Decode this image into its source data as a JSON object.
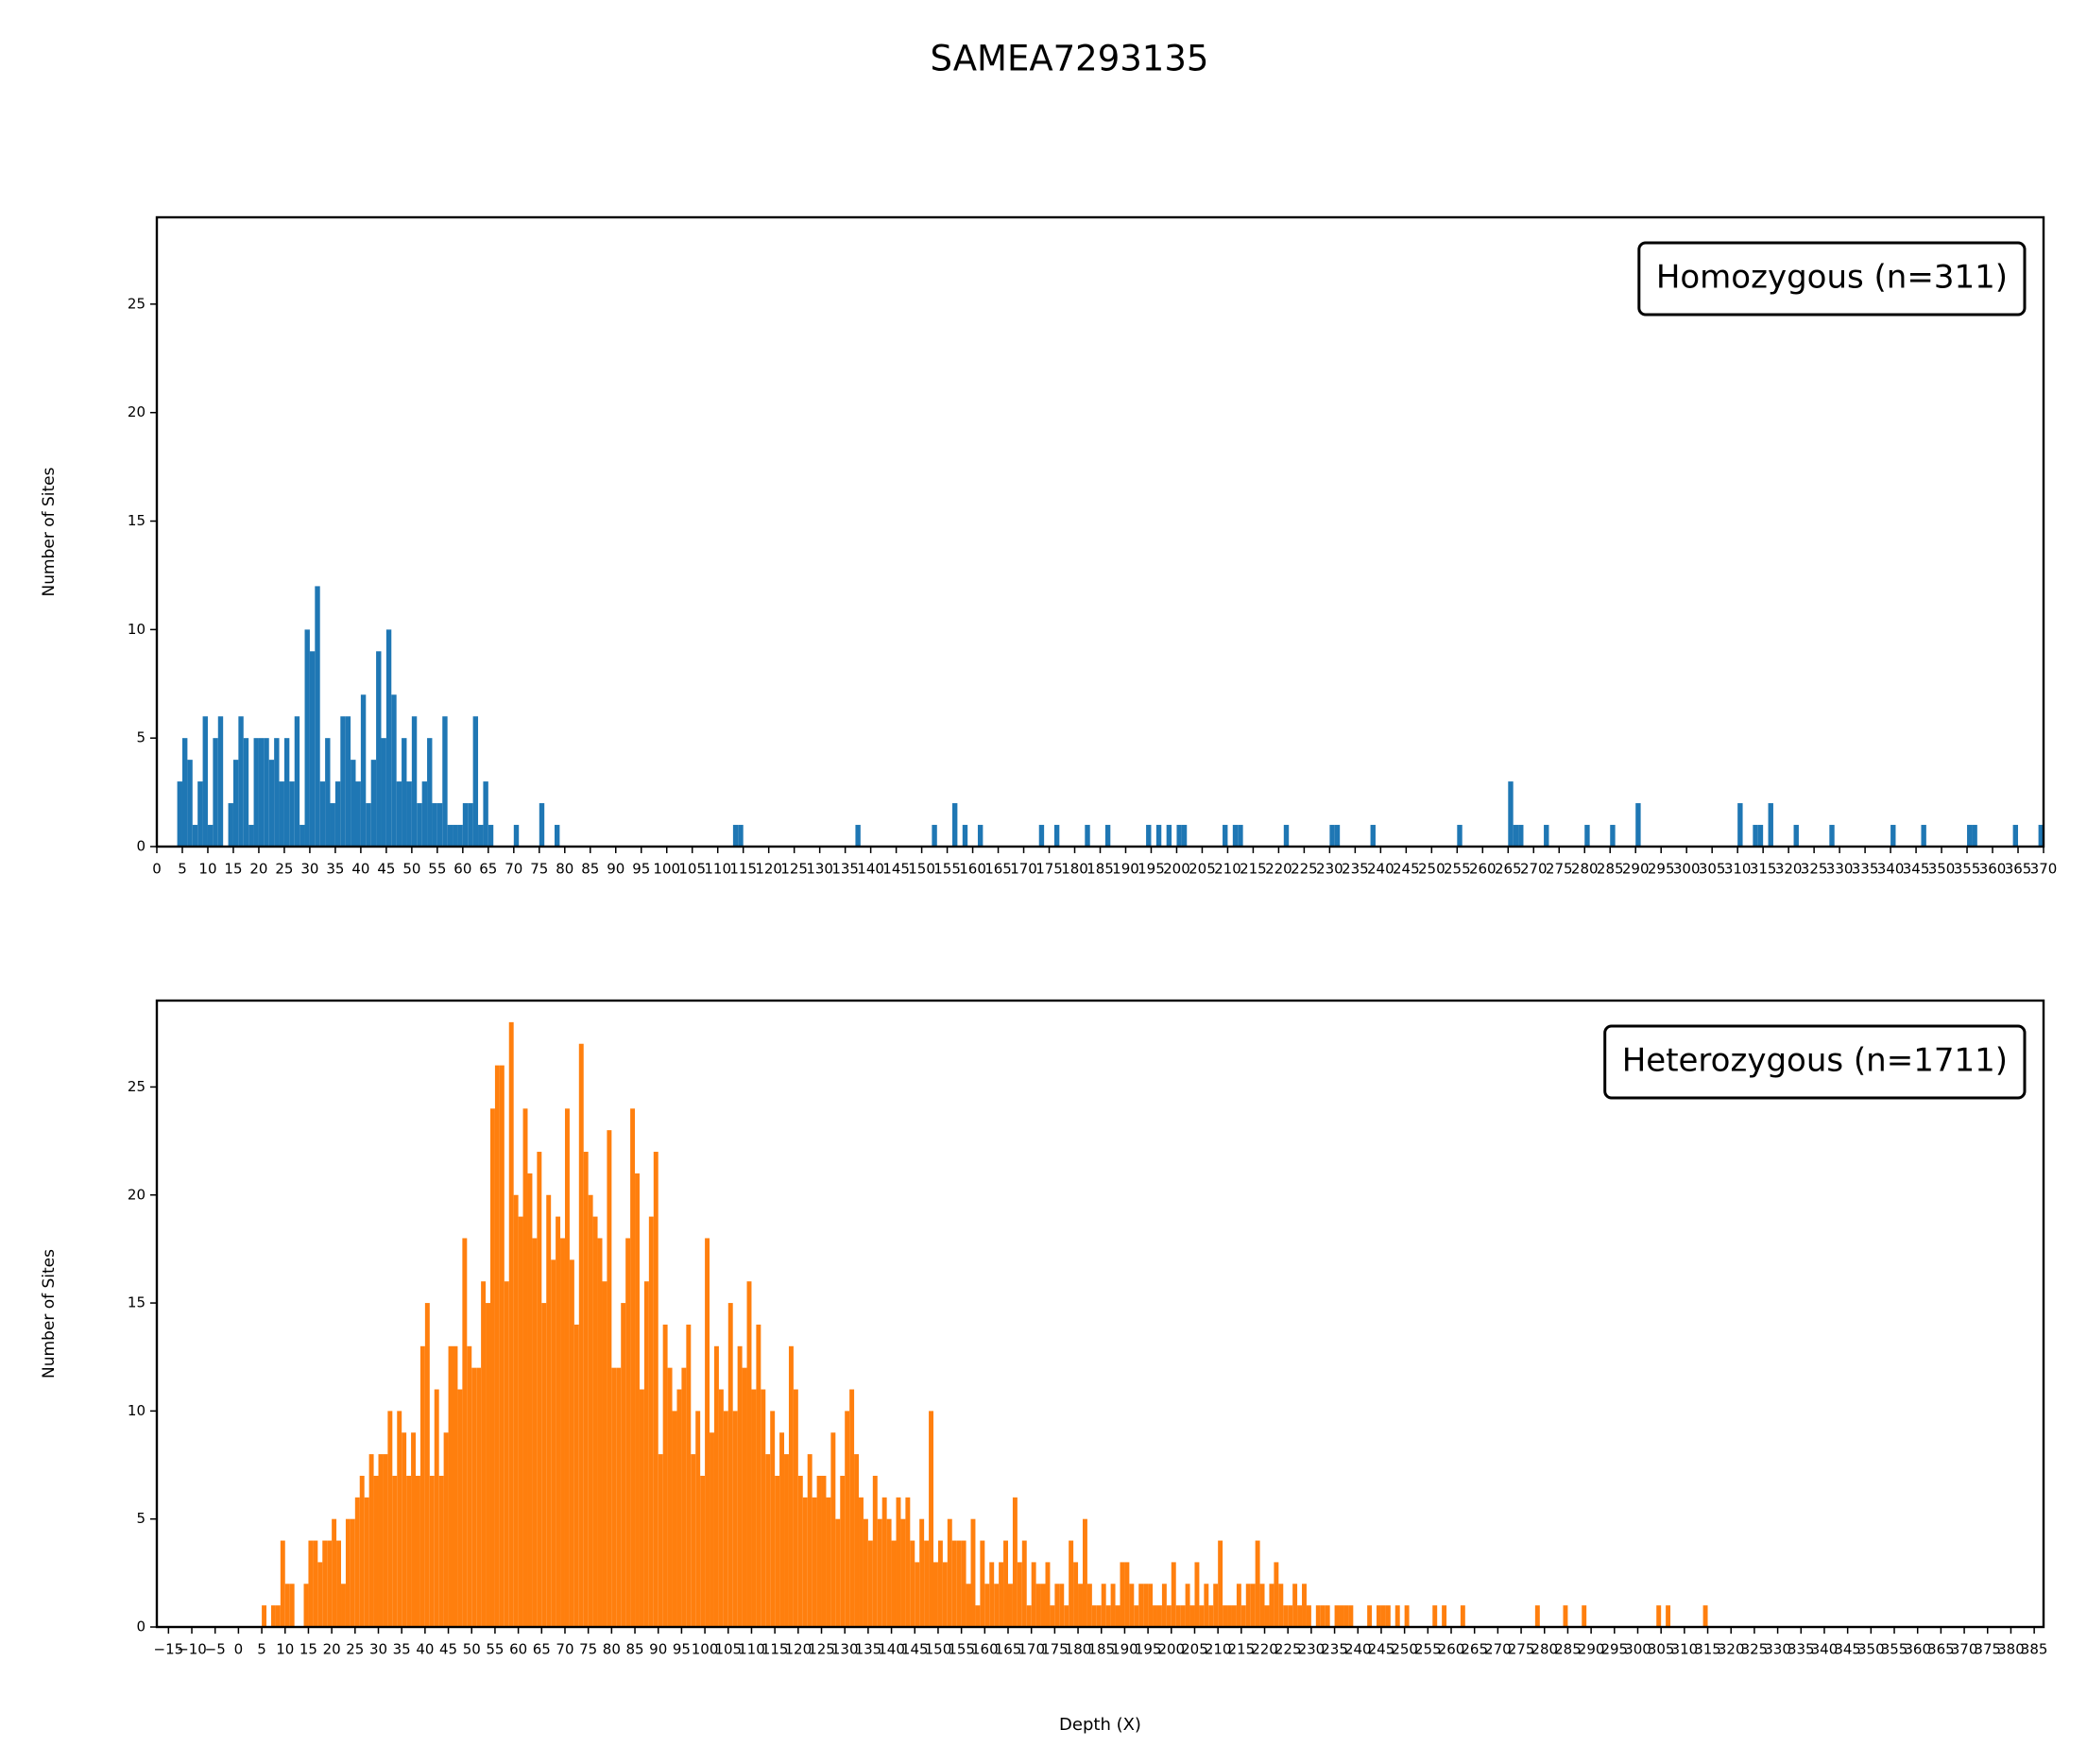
{
  "title": "SAMEA7293135",
  "chart_data": [
    {
      "type": "bar",
      "label": "Homozygous (n=311)",
      "color": "#1f77b4",
      "ylabel": "Number of Sites",
      "x": [
        4,
        5,
        6,
        7,
        8,
        9,
        10,
        11,
        12,
        14,
        15,
        16,
        17,
        18,
        19,
        20,
        21,
        22,
        23,
        24,
        25,
        26,
        27,
        28,
        29,
        30,
        31,
        32,
        33,
        34,
        35,
        36,
        37,
        38,
        39,
        40,
        41,
        42,
        43,
        44,
        45,
        46,
        47,
        48,
        49,
        50,
        51,
        52,
        53,
        54,
        55,
        56,
        57,
        58,
        59,
        60,
        61,
        62,
        63,
        64,
        65,
        70,
        75,
        78,
        113,
        114,
        137,
        152,
        156,
        158,
        161,
        173,
        176,
        182,
        186,
        194,
        196,
        198,
        200,
        201,
        209,
        211,
        212,
        221,
        230,
        231,
        238,
        255,
        265,
        266,
        267,
        272,
        280,
        285,
        290,
        310,
        313,
        314,
        316,
        321,
        328,
        340,
        346,
        355,
        356,
        364,
        369
      ],
      "values": [
        3,
        5,
        4,
        1,
        3,
        6,
        1,
        5,
        6,
        2,
        4,
        6,
        5,
        1,
        5,
        5,
        5,
        4,
        5,
        3,
        5,
        3,
        6,
        1,
        10,
        9,
        12,
        3,
        5,
        2,
        3,
        6,
        6,
        4,
        3,
        7,
        2,
        4,
        9,
        5,
        10,
        7,
        3,
        5,
        3,
        6,
        2,
        3,
        5,
        2,
        2,
        6,
        1,
        1,
        1,
        2,
        2,
        6,
        1,
        3,
        1,
        1,
        2,
        1,
        1,
        1,
        1,
        1,
        2,
        1,
        1,
        1,
        1,
        1,
        1,
        1,
        1,
        1,
        1,
        1,
        1,
        1,
        1,
        1,
        1,
        1,
        1,
        1,
        3,
        1,
        1,
        1,
        1,
        1,
        2,
        2,
        1,
        1,
        2,
        1,
        1,
        1,
        1,
        1,
        1,
        1,
        1
      ],
      "xlim": [
        0,
        370
      ],
      "xticks": [
        0,
        5,
        10,
        15,
        20,
        25,
        30,
        35,
        40,
        45,
        50,
        55,
        60,
        65,
        70,
        75,
        80,
        85,
        90,
        95,
        100,
        105,
        110,
        115,
        120,
        125,
        130,
        135,
        140,
        145,
        150,
        155,
        160,
        165,
        170,
        175,
        180,
        185,
        190,
        195,
        200,
        205,
        210,
        215,
        220,
        225,
        230,
        235,
        240,
        245,
        250,
        255,
        260,
        265,
        270,
        275,
        280,
        285,
        290,
        295,
        300,
        305,
        310,
        315,
        320,
        325,
        330,
        335,
        340,
        345,
        350,
        355,
        360,
        365,
        370
      ],
      "ylim": [
        0,
        29
      ],
      "yticks": [
        0,
        5,
        10,
        15,
        20,
        25
      ]
    },
    {
      "type": "bar",
      "label": "Heterozygous (n=1711)",
      "color": "#ff7f0e",
      "ylabel": "Number of Sites",
      "xlabel": "Depth (X)",
      "x": [
        5,
        6,
        7,
        8,
        9,
        10,
        11,
        12,
        13,
        14,
        15,
        16,
        17,
        18,
        19,
        20,
        21,
        22,
        23,
        24,
        25,
        26,
        27,
        28,
        29,
        30,
        31,
        32,
        33,
        34,
        35,
        36,
        37,
        38,
        39,
        40,
        41,
        42,
        43,
        44,
        45,
        46,
        47,
        48,
        49,
        50,
        51,
        52,
        53,
        54,
        55,
        56,
        57,
        58,
        59,
        60,
        61,
        62,
        63,
        64,
        65,
        66,
        67,
        68,
        69,
        70,
        71,
        72,
        73,
        74,
        75,
        76,
        77,
        78,
        79,
        80,
        81,
        82,
        83,
        84,
        85,
        86,
        87,
        88,
        89,
        90,
        91,
        92,
        93,
        94,
        95,
        96,
        97,
        98,
        99,
        100,
        101,
        102,
        103,
        104,
        105,
        106,
        107,
        108,
        109,
        110,
        111,
        112,
        113,
        114,
        115,
        116,
        117,
        118,
        119,
        120,
        121,
        122,
        123,
        124,
        125,
        126,
        127,
        128,
        129,
        130,
        131,
        132,
        133,
        134,
        135,
        136,
        137,
        138,
        139,
        140,
        141,
        142,
        143,
        144,
        145,
        146,
        147,
        148,
        149,
        150,
        151,
        152,
        153,
        154,
        155,
        156,
        157,
        158,
        159,
        160,
        161,
        162,
        163,
        164,
        165,
        166,
        167,
        168,
        169,
        170,
        171,
        172,
        173,
        174,
        175,
        176,
        177,
        178,
        179,
        180,
        181,
        182,
        183,
        184,
        185,
        186,
        187,
        188,
        189,
        190,
        191,
        192,
        193,
        194,
        195,
        196,
        197,
        198,
        199,
        200,
        201,
        202,
        203,
        204,
        205,
        206,
        207,
        208,
        209,
        210,
        211,
        212,
        213,
        214,
        215,
        216,
        217,
        218,
        219,
        220,
        221,
        222,
        223,
        224,
        225,
        226,
        227,
        228,
        229,
        231,
        232,
        233,
        235,
        236,
        237,
        238,
        242,
        244,
        245,
        246,
        248,
        250,
        256,
        258,
        262,
        278,
        284,
        288,
        304,
        306,
        314
      ],
      "values": [
        1,
        0,
        1,
        1,
        4,
        2,
        2,
        0,
        0,
        2,
        4,
        4,
        3,
        4,
        4,
        5,
        4,
        2,
        5,
        5,
        6,
        7,
        6,
        8,
        7,
        8,
        8,
        10,
        7,
        10,
        9,
        7,
        9,
        7,
        13,
        15,
        7,
        11,
        7,
        9,
        13,
        13,
        11,
        18,
        13,
        12,
        12,
        16,
        15,
        24,
        26,
        26,
        16,
        28,
        20,
        19,
        24,
        21,
        18,
        22,
        15,
        20,
        17,
        19,
        18,
        24,
        17,
        14,
        27,
        22,
        20,
        19,
        18,
        16,
        23,
        12,
        12,
        15,
        18,
        24,
        21,
        11,
        16,
        19,
        22,
        8,
        14,
        12,
        10,
        11,
        12,
        14,
        8,
        10,
        7,
        18,
        9,
        13,
        11,
        10,
        15,
        10,
        13,
        12,
        16,
        11,
        14,
        11,
        8,
        10,
        7,
        9,
        8,
        13,
        11,
        7,
        6,
        8,
        6,
        7,
        7,
        6,
        9,
        5,
        7,
        10,
        11,
        8,
        6,
        5,
        4,
        7,
        5,
        6,
        5,
        4,
        6,
        5,
        6,
        4,
        3,
        5,
        4,
        10,
        3,
        4,
        3,
        5,
        4,
        4,
        4,
        2,
        5,
        1,
        4,
        2,
        3,
        2,
        3,
        4,
        2,
        6,
        3,
        4,
        1,
        3,
        2,
        2,
        3,
        1,
        2,
        2,
        1,
        4,
        3,
        2,
        5,
        2,
        1,
        1,
        2,
        1,
        2,
        1,
        3,
        3,
        2,
        1,
        2,
        2,
        2,
        1,
        1,
        2,
        1,
        3,
        1,
        1,
        2,
        1,
        3,
        1,
        2,
        1,
        2,
        4,
        1,
        1,
        1,
        2,
        1,
        2,
        2,
        4,
        2,
        1,
        2,
        3,
        2,
        1,
        1,
        2,
        1,
        2,
        1,
        1,
        1,
        1,
        1,
        1,
        1,
        1,
        1,
        1,
        1,
        1,
        1,
        1,
        1,
        1,
        1,
        1,
        1,
        1,
        1,
        1,
        1
      ],
      "xlim": [
        -17.5,
        387
      ],
      "xticks": [
        {
          "value": -15,
          "label": "−15"
        },
        {
          "value": -10,
          "label": "−10"
        },
        {
          "value": -5,
          "label": "−5"
        },
        0,
        5,
        10,
        15,
        20,
        25,
        30,
        35,
        40,
        45,
        50,
        55,
        60,
        65,
        70,
        75,
        80,
        85,
        90,
        95,
        100,
        105,
        110,
        115,
        120,
        125,
        130,
        135,
        140,
        145,
        150,
        155,
        160,
        165,
        170,
        175,
        180,
        185,
        190,
        195,
        200,
        205,
        210,
        215,
        220,
        225,
        230,
        235,
        240,
        245,
        250,
        255,
        260,
        265,
        270,
        275,
        280,
        285,
        290,
        295,
        300,
        305,
        310,
        315,
        320,
        325,
        330,
        335,
        340,
        345,
        350,
        355,
        360,
        365,
        370,
        375,
        380,
        385
      ],
      "ylim": [
        0,
        29
      ],
      "yticks": [
        0,
        5,
        10,
        15,
        20,
        25
      ]
    }
  ]
}
